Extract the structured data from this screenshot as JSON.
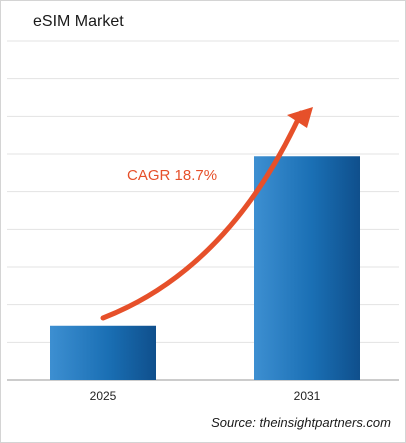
{
  "chart_data": {
    "type": "bar",
    "title": "eSIM Market",
    "categories": [
      "2025",
      "2031"
    ],
    "values": [
      16,
      66
    ],
    "ylim": [
      0,
      100
    ],
    "grid": true,
    "xlabel": "",
    "ylabel": "",
    "annotation": "CAGR 18.7%",
    "bar_color": "#1a6fb4",
    "arrow_color": "#e6502a"
  },
  "source": "Source: theinsightpartners.com"
}
